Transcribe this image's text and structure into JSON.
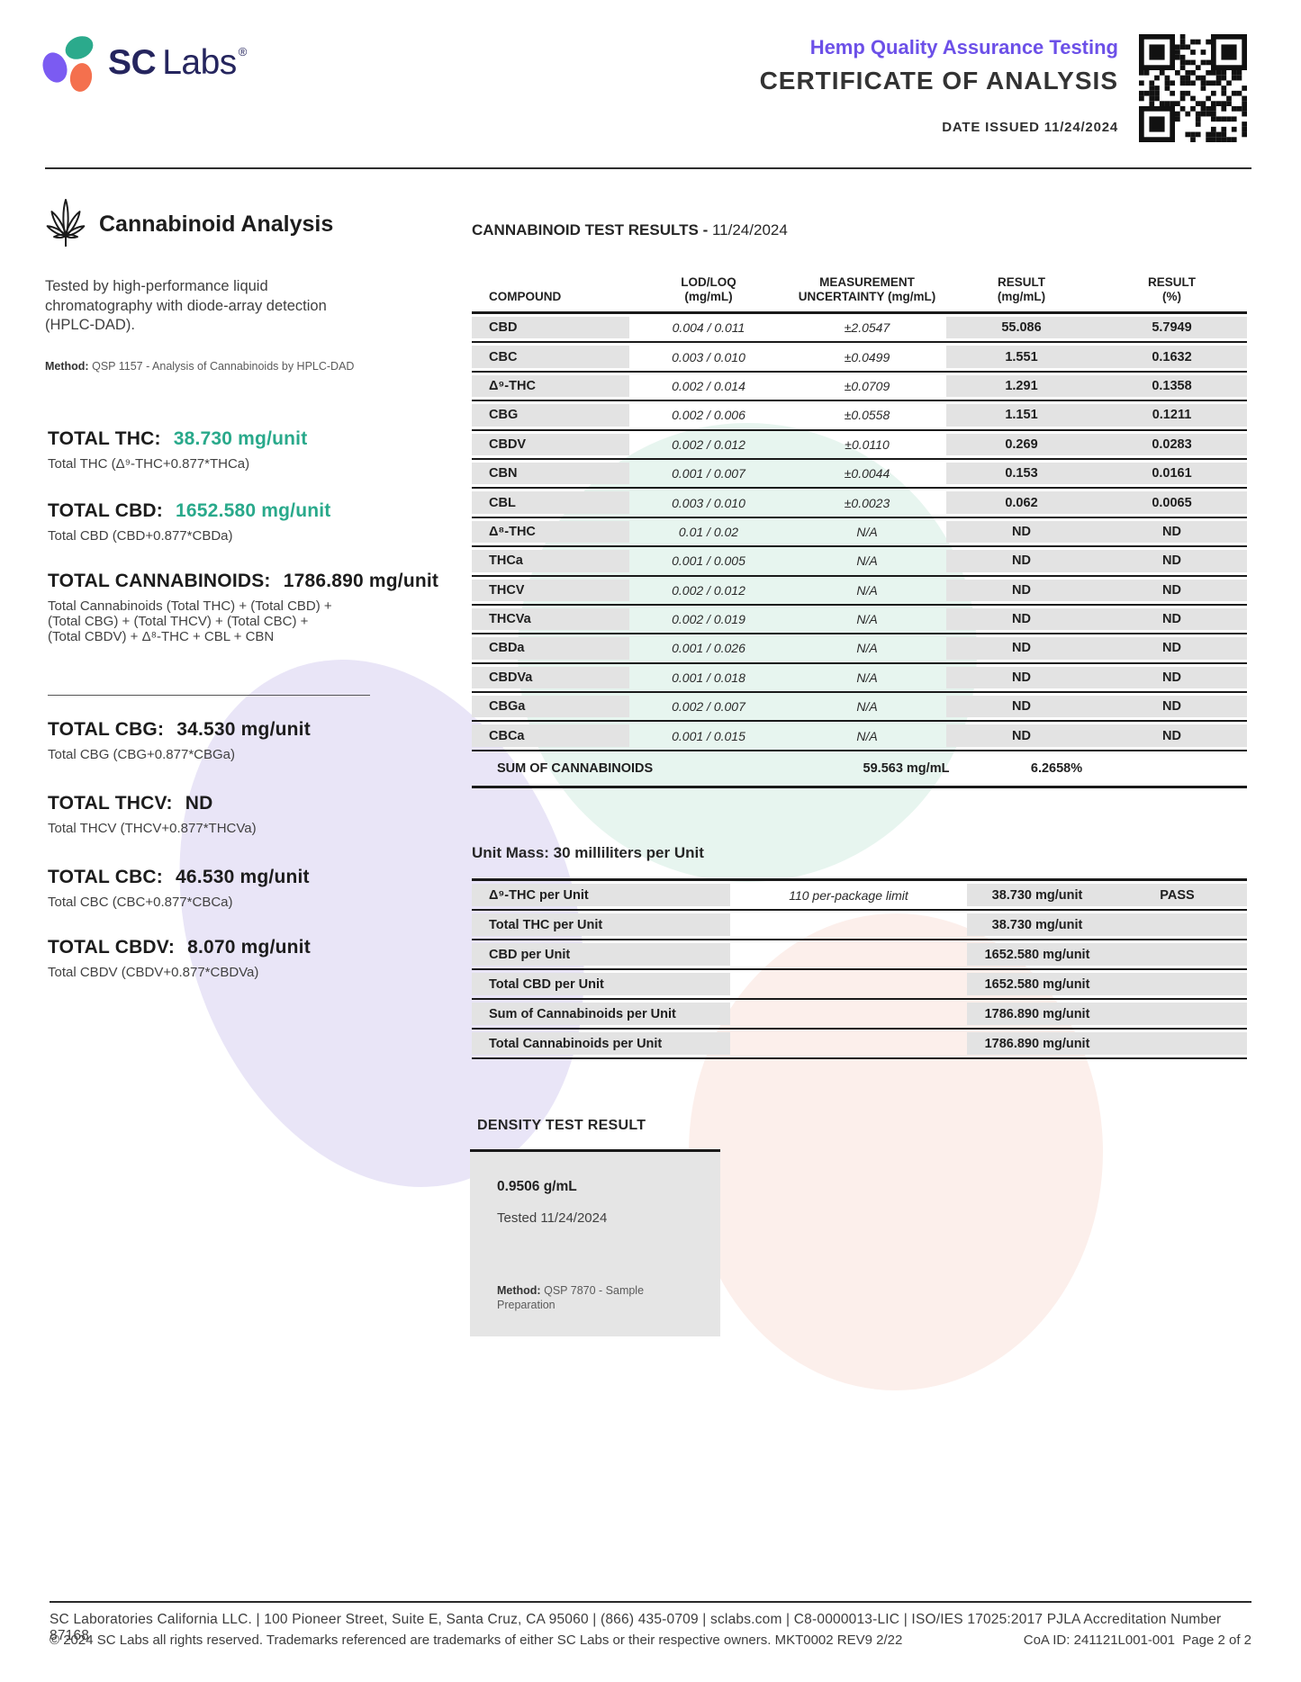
{
  "brand": {
    "name_bold": "SC",
    "name_regular": "Labs",
    "registered": "®"
  },
  "header": {
    "program": "Hemp Quality Assurance Testing",
    "title": "CERTIFICATE OF ANALYSIS",
    "date_issued": "DATE ISSUED 11/24/2024"
  },
  "analysis": {
    "title": "Cannabinoid Analysis",
    "description": "Tested by high-performance liquid\nchromatography with diode-array detection\n(HPLC-DAD).",
    "method_label": "Method:",
    "method": "QSP 1157 - Analysis of Cannabinoids by HPLC-DAD",
    "totals_primary": [
      {
        "label": "TOTAL THC:",
        "value": "38.730 mg/unit",
        "highlight": true,
        "formula": "Total THC (Δ⁹-THC+0.877*THCa)"
      },
      {
        "label": "TOTAL CBD:",
        "value": "1652.580 mg/unit",
        "highlight": true,
        "formula": "Total CBD (CBD+0.877*CBDa)"
      },
      {
        "label": "TOTAL CANNABINOIDS:",
        "value": "1786.890 mg/unit",
        "highlight": false,
        "formula": "Total Cannabinoids (Total THC) + (Total CBD) +\n(Total CBG) + (Total THCV) + (Total CBC) +\n(Total CBDV) + Δ⁸-THC + CBL + CBN"
      }
    ],
    "totals_secondary": [
      {
        "label": "TOTAL CBG:",
        "value": "34.530 mg/unit",
        "formula": "Total CBG (CBG+0.877*CBGa)"
      },
      {
        "label": "TOTAL THCV:",
        "value": "ND",
        "formula": "Total THCV (THCV+0.877*THCVa)"
      },
      {
        "label": "TOTAL CBC:",
        "value": "46.530 mg/unit",
        "formula": "Total CBC (CBC+0.877*CBCa)"
      },
      {
        "label": "TOTAL CBDV:",
        "value": "8.070 mg/unit",
        "formula": "Total CBDV (CBDV+0.877*CBDVa)"
      }
    ]
  },
  "results": {
    "title": "CANNABINOID TEST RESULTS -",
    "date": "11/24/2024",
    "columns": [
      "COMPOUND",
      "LOD/LOQ\n(mg/mL)",
      "MEASUREMENT\nUNCERTAINTY (mg/mL)",
      "RESULT\n(mg/mL)",
      "RESULT\n(%)"
    ],
    "rows": [
      [
        "CBD",
        "0.004 / 0.011",
        "±2.0547",
        "55.086",
        "5.7949"
      ],
      [
        "CBC",
        "0.003 / 0.010",
        "±0.0499",
        "1.551",
        "0.1632"
      ],
      [
        "Δ⁹-THC",
        "0.002 / 0.014",
        "±0.0709",
        "1.291",
        "0.1358"
      ],
      [
        "CBG",
        "0.002 / 0.006",
        "±0.0558",
        "1.151",
        "0.1211"
      ],
      [
        "CBDV",
        "0.002 / 0.012",
        "±0.0110",
        "0.269",
        "0.0283"
      ],
      [
        "CBN",
        "0.001 / 0.007",
        "±0.0044",
        "0.153",
        "0.0161"
      ],
      [
        "CBL",
        "0.003 / 0.010",
        "±0.0023",
        "0.062",
        "0.0065"
      ],
      [
        "Δ⁸-THC",
        "0.01 / 0.02",
        "N/A",
        "ND",
        "ND"
      ],
      [
        "THCa",
        "0.001 / 0.005",
        "N/A",
        "ND",
        "ND"
      ],
      [
        "THCV",
        "0.002 / 0.012",
        "N/A",
        "ND",
        "ND"
      ],
      [
        "THCVa",
        "0.002 / 0.019",
        "N/A",
        "ND",
        "ND"
      ],
      [
        "CBDa",
        "0.001 / 0.026",
        "N/A",
        "ND",
        "ND"
      ],
      [
        "CBDVa",
        "0.001 / 0.018",
        "N/A",
        "ND",
        "ND"
      ],
      [
        "CBGa",
        "0.002 / 0.007",
        "N/A",
        "ND",
        "ND"
      ],
      [
        "CBCa",
        "0.001 / 0.015",
        "N/A",
        "ND",
        "ND"
      ]
    ],
    "sum_label": "SUM OF CANNABINOIDS",
    "sum_mg": "59.563 mg/mL",
    "sum_pct": "6.2658%"
  },
  "unit_mass": {
    "heading": "Unit Mass: 30 milliliters per Unit",
    "rows": [
      {
        "label": "Δ⁹-THC per Unit",
        "limit": "110 per-package limit",
        "value": "38.730 mg/unit",
        "status": "PASS"
      },
      {
        "label": "Total THC per Unit",
        "limit": "",
        "value": "38.730 mg/unit",
        "status": ""
      },
      {
        "label": "CBD per Unit",
        "limit": "",
        "value": "1652.580 mg/unit",
        "status": ""
      },
      {
        "label": "Total CBD per Unit",
        "limit": "",
        "value": "1652.580 mg/unit",
        "status": ""
      },
      {
        "label": "Sum of Cannabinoids per Unit",
        "limit": "",
        "value": "1786.890 mg/unit",
        "status": ""
      },
      {
        "label": "Total Cannabinoids per Unit",
        "limit": "",
        "value": "1786.890 mg/unit",
        "status": ""
      }
    ]
  },
  "density": {
    "heading": "DENSITY TEST RESULT",
    "value": "0.9506 g/mL",
    "tested": "Tested 11/24/2024",
    "method_label": "Method:",
    "method": "QSP 7870 - Sample Preparation"
  },
  "footer": {
    "line1": "SC Laboratories California LLC. | 100 Pioneer Street, Suite E, Santa Cruz, CA 95060 | (866) 435-0709 | sclabs.com | C8-0000013-LIC | ISO/IES 17025:2017 PJLA Accreditation Number 87168",
    "line2": "© 2024 SC Labs all rights reserved. Trademarks referenced are trademarks of either SC Labs or their respective owners. MKT0002 REV9 2/22",
    "coa": "CoA ID: 241121L001-001  Page 2 of 2"
  },
  "colors": {
    "accent_teal": "#29A98B",
    "brand_purple": "#6C50E8",
    "logo_navy": "#25255E",
    "blob_purple": "#7B5BF2",
    "blob_teal": "#2BAA8C",
    "blob_coral": "#F4704E",
    "pastel_mint": "#E7F5EF",
    "pastel_lavender": "#E9E5F7",
    "pastel_pink": "#FCEFEB",
    "table_gray": "#E3E3E3"
  }
}
